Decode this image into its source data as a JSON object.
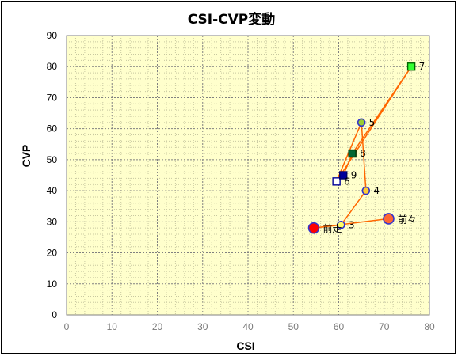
{
  "chart_data": {
    "type": "scatter",
    "title": "CSI-CVP変動",
    "xlabel": "CSI",
    "ylabel": "CVP",
    "xlim": [
      0,
      80
    ],
    "ylim": [
      0,
      90
    ],
    "xticks": [
      0,
      10,
      20,
      30,
      40,
      50,
      60,
      70,
      80
    ],
    "yticks": [
      0,
      10,
      20,
      30,
      40,
      50,
      60,
      70,
      80,
      90
    ],
    "grid": true,
    "plot_background": "#ffffcc",
    "line_color": "#ff6600",
    "connection_order": [
      "前々",
      "前走",
      "3",
      "4",
      "5",
      "6",
      "7",
      "8",
      "9"
    ],
    "points": [
      {
        "label": "前々",
        "x": 71,
        "y": 31,
        "shape": "circle",
        "fill": "#ff6633",
        "stroke": "#3333cc",
        "size": "large"
      },
      {
        "label": "前走",
        "x": 54.5,
        "y": 28,
        "shape": "circle",
        "fill": "#ff0000",
        "stroke": "#3333cc",
        "size": "large"
      },
      {
        "label": "3",
        "x": 60.5,
        "y": 29,
        "shape": "circle",
        "fill": "#ffff66",
        "stroke": "#3333cc",
        "size": "small"
      },
      {
        "label": "4",
        "x": 66,
        "y": 40,
        "shape": "circle",
        "fill": "#ffcc33",
        "stroke": "#3333cc",
        "size": "small"
      },
      {
        "label": "5",
        "x": 65,
        "y": 62,
        "shape": "circle",
        "fill": "#99cc33",
        "stroke": "#3333cc",
        "size": "small"
      },
      {
        "label": "6",
        "x": 59.5,
        "y": 43,
        "shape": "square",
        "fill": "#ffffff",
        "stroke": "#000099",
        "size": "small"
      },
      {
        "label": "7",
        "x": 76,
        "y": 80,
        "shape": "square",
        "fill": "#33ff33",
        "stroke": "#006600",
        "size": "small"
      },
      {
        "label": "8",
        "x": 63,
        "y": 52,
        "shape": "square",
        "fill": "#006633",
        "stroke": "#003300",
        "size": "small"
      },
      {
        "label": "9",
        "x": 61,
        "y": 45,
        "shape": "square",
        "fill": "#000099",
        "stroke": "#000066",
        "size": "small"
      }
    ]
  }
}
